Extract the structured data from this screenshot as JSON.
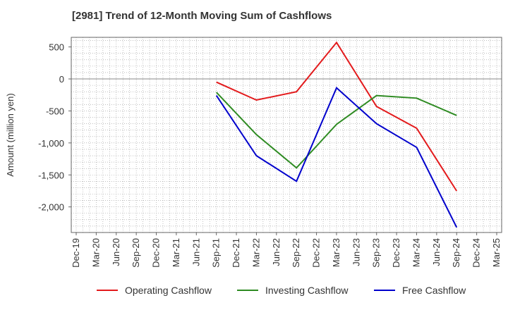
{
  "chart_data": {
    "type": "line",
    "title": "[2981]  Trend of 12-Month Moving Sum of Cashflows",
    "ylabel": "Amount (million yen)",
    "xlabel": "",
    "ylim": [
      -2400,
      650
    ],
    "yticks": [
      500,
      0,
      -500,
      -1000,
      -1500,
      -2000
    ],
    "ytick_labels": [
      "500",
      "0",
      "-500",
      "-1,000",
      "-1,500",
      "-2,000"
    ],
    "x_ticks": [
      "Dec-19",
      "Mar-20",
      "Jun-20",
      "Sep-20",
      "Dec-20",
      "Mar-21",
      "Jun-21",
      "Sep-21",
      "Dec-21",
      "Mar-22",
      "Jun-22",
      "Sep-22",
      "Dec-22",
      "Mar-23",
      "Jun-23",
      "Sep-23",
      "Dec-23",
      "Mar-24",
      "Jun-24",
      "Sep-24",
      "Dec-24",
      "Mar-25"
    ],
    "grid": true,
    "legend_position": "bottom",
    "series": [
      {
        "name": "Operating Cashflow",
        "color": "#e31a1c",
        "x": [
          "Sep-21",
          "Mar-22",
          "Sep-22",
          "Mar-23",
          "Sep-23",
          "Mar-24",
          "Sep-24"
        ],
        "values": [
          -50,
          -330,
          -200,
          570,
          -430,
          -770,
          -1750
        ]
      },
      {
        "name": "Investing Cashflow",
        "color": "#2e8b22",
        "x": [
          "Sep-21",
          "Mar-22",
          "Sep-22",
          "Mar-23",
          "Sep-23",
          "Mar-24",
          "Sep-24"
        ],
        "values": [
          -210,
          -870,
          -1390,
          -710,
          -260,
          -300,
          -570
        ]
      },
      {
        "name": "Free Cashflow",
        "color": "#0000cc",
        "x": [
          "Sep-21",
          "Mar-22",
          "Sep-22",
          "Mar-23",
          "Sep-23",
          "Mar-24",
          "Sep-24"
        ],
        "values": [
          -260,
          -1200,
          -1600,
          -140,
          -700,
          -1070,
          -2320
        ]
      }
    ]
  }
}
